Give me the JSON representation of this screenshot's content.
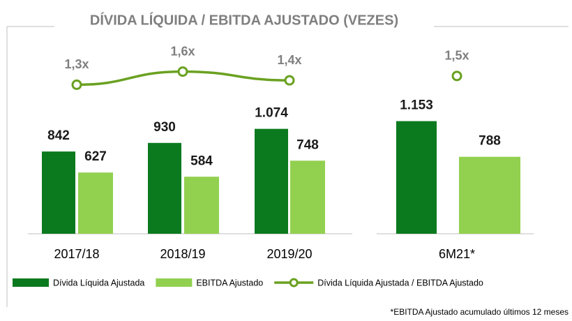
{
  "chart_data": {
    "type": "bar",
    "title": "DÍVIDA LÍQUIDA / EBITDA AJUSTADO (VEZES)",
    "categories": [
      "2017/18",
      "2018/19",
      "2019/20",
      "6M21*"
    ],
    "series": [
      {
        "name": "Dívida Líquida Ajustada",
        "color": "#0b7a1e",
        "values": [
          842,
          930,
          1074,
          1153
        ],
        "value_labels": [
          "842",
          "930",
          "1.074",
          "1.153"
        ]
      },
      {
        "name": "EBITDA Ajustado",
        "color": "#92d050",
        "values": [
          627,
          584,
          748,
          788
        ]
      },
      {
        "name": "Dívida Líquida Ajustada / EBITDA Ajustado",
        "type": "line",
        "axis": "y2",
        "color": "#6aa121",
        "values": [
          1.3,
          1.6,
          1.4,
          1.5
        ],
        "value_labels": [
          "1,3x",
          "1,6x",
          "1,4x",
          "1,5x"
        ]
      }
    ],
    "ylim": [
      0,
      1750
    ],
    "y2lim": [
      -2.1,
      1.8
    ],
    "footnote": "*EBITDA Ajustado acumulado últimos 12 meses"
  }
}
